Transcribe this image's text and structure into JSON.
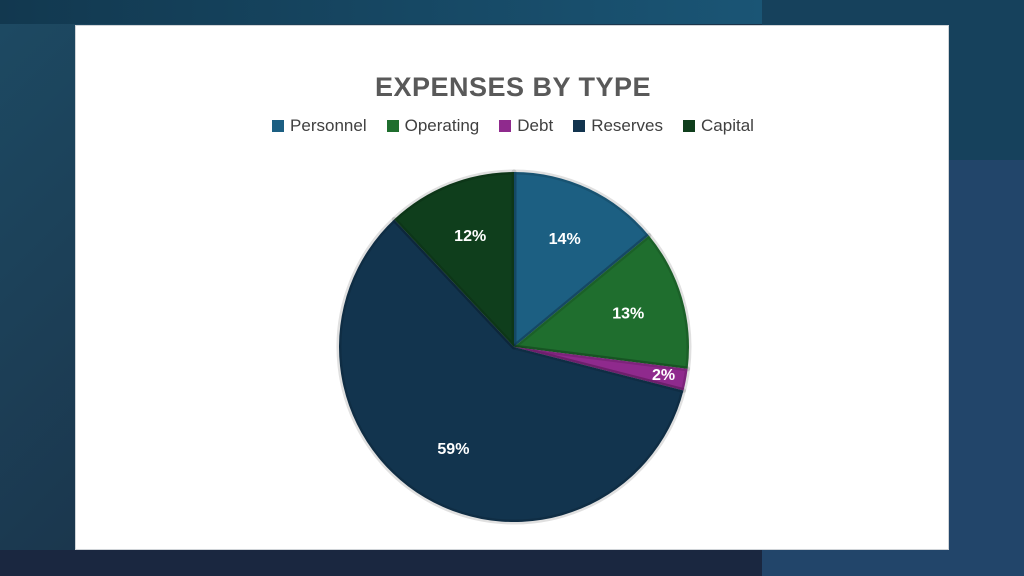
{
  "chart_data": {
    "type": "pie",
    "title": "EXPENSES BY TYPE",
    "legend_position": "top",
    "categories": [
      "Personnel",
      "Operating",
      "Debt",
      "Reserves",
      "Capital"
    ],
    "values": [
      14,
      13,
      2,
      59,
      12
    ],
    "labels": [
      "14%",
      "13%",
      "2%",
      "59%",
      "12%"
    ],
    "colors": [
      "#1c5f82",
      "#1f6e2e",
      "#8f2a8d",
      "#12344e",
      "#0f3e1c"
    ]
  }
}
